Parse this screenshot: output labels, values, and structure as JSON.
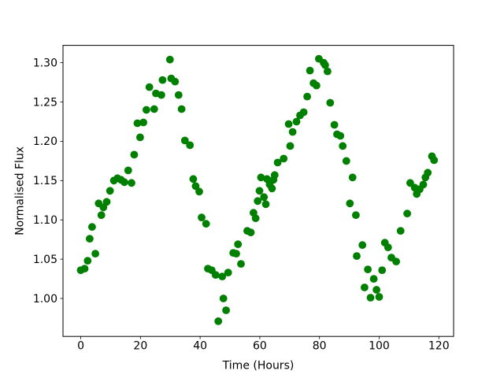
{
  "figure": {
    "background_color": "#ffffff",
    "axes_line_color": "#000000",
    "tick_label_color": "#000000"
  },
  "chart_data": {
    "type": "scatter",
    "title": "",
    "xlabel": "Time (Hours)",
    "ylabel": "Normalised Flux",
    "grid": false,
    "legend": null,
    "marker": {
      "shape": "circle",
      "color": "#008000",
      "radius_px": 4.9
    },
    "xlim": [
      -5.95,
      124.95
    ],
    "ylim": [
      0.9517,
      1.3221
    ],
    "x_ticks": [
      0,
      20,
      40,
      60,
      80,
      100,
      120
    ],
    "x_tick_labels": [
      "0",
      "20",
      "40",
      "60",
      "80",
      "100",
      "120"
    ],
    "y_ticks": [
      1.0,
      1.05,
      1.1,
      1.15,
      1.2,
      1.25,
      1.3
    ],
    "y_tick_labels": [
      "1.00",
      "1.05",
      "1.10",
      "1.15",
      "1.20",
      "1.25",
      "1.30"
    ],
    "points": [
      [
        0.0,
        1.036
      ],
      [
        1.3,
        1.038
      ],
      [
        2.3,
        1.048
      ],
      [
        3.0,
        1.076
      ],
      [
        3.8,
        1.091
      ],
      [
        4.9,
        1.057
      ],
      [
        6.0,
        1.121
      ],
      [
        6.9,
        1.106
      ],
      [
        7.6,
        1.116
      ],
      [
        8.7,
        1.123
      ],
      [
        9.8,
        1.137
      ],
      [
        11.1,
        1.15
      ],
      [
        12.3,
        1.153
      ],
      [
        13.5,
        1.151
      ],
      [
        14.6,
        1.148
      ],
      [
        15.9,
        1.163
      ],
      [
        17.0,
        1.147
      ],
      [
        17.9,
        1.183
      ],
      [
        19.0,
        1.223
      ],
      [
        19.9,
        1.205
      ],
      [
        21.0,
        1.224
      ],
      [
        22.0,
        1.24
      ],
      [
        23.0,
        1.269
      ],
      [
        24.6,
        1.241
      ],
      [
        25.2,
        1.261
      ],
      [
        27.0,
        1.259
      ],
      [
        27.4,
        1.278
      ],
      [
        29.9,
        1.304
      ],
      [
        30.3,
        1.28
      ],
      [
        31.6,
        1.276
      ],
      [
        32.8,
        1.259
      ],
      [
        33.8,
        1.241
      ],
      [
        34.9,
        1.201
      ],
      [
        36.6,
        1.195
      ],
      [
        37.7,
        1.152
      ],
      [
        38.5,
        1.143
      ],
      [
        39.7,
        1.136
      ],
      [
        40.5,
        1.103
      ],
      [
        42.0,
        1.095
      ],
      [
        42.6,
        1.038
      ],
      [
        43.9,
        1.036
      ],
      [
        45.2,
        1.03
      ],
      [
        46.1,
        0.971
      ],
      [
        47.4,
        1.028
      ],
      [
        47.8,
        1.0
      ],
      [
        48.7,
        0.985
      ],
      [
        49.4,
        1.033
      ],
      [
        51.1,
        1.058
      ],
      [
        52.1,
        1.057
      ],
      [
        52.7,
        1.069
      ],
      [
        53.7,
        1.044
      ],
      [
        55.8,
        1.086
      ],
      [
        57.0,
        1.084
      ],
      [
        57.9,
        1.109
      ],
      [
        58.6,
        1.102
      ],
      [
        59.3,
        1.124
      ],
      [
        59.9,
        1.137
      ],
      [
        60.4,
        1.154
      ],
      [
        61.4,
        1.129
      ],
      [
        62.0,
        1.12
      ],
      [
        62.4,
        1.152
      ],
      [
        63.3,
        1.145
      ],
      [
        64.1,
        1.14
      ],
      [
        64.6,
        1.151
      ],
      [
        65.0,
        1.157
      ],
      [
        66.0,
        1.173
      ],
      [
        68.0,
        1.178
      ],
      [
        69.7,
        1.222
      ],
      [
        70.2,
        1.194
      ],
      [
        71.0,
        1.212
      ],
      [
        72.3,
        1.225
      ],
      [
        73.5,
        1.233
      ],
      [
        74.7,
        1.237
      ],
      [
        75.9,
        1.257
      ],
      [
        76.8,
        1.29
      ],
      [
        78.0,
        1.274
      ],
      [
        79.0,
        1.271
      ],
      [
        79.8,
        1.305
      ],
      [
        81.4,
        1.3
      ],
      [
        81.9,
        1.297
      ],
      [
        82.7,
        1.289
      ],
      [
        83.6,
        1.249
      ],
      [
        85.0,
        1.221
      ],
      [
        85.9,
        1.209
      ],
      [
        87.0,
        1.207
      ],
      [
        87.8,
        1.194
      ],
      [
        89.0,
        1.175
      ],
      [
        90.2,
        1.121
      ],
      [
        91.1,
        1.154
      ],
      [
        92.2,
        1.106
      ],
      [
        92.5,
        1.054
      ],
      [
        94.4,
        1.068
      ],
      [
        95.1,
        1.014
      ],
      [
        96.2,
        1.037
      ],
      [
        97.1,
        1.001
      ],
      [
        98.2,
        1.025
      ],
      [
        99.1,
        1.011
      ],
      [
        100.0,
        1.002
      ],
      [
        101.0,
        1.036
      ],
      [
        101.9,
        1.071
      ],
      [
        103.0,
        1.065
      ],
      [
        104.1,
        1.052
      ],
      [
        105.7,
        1.047
      ],
      [
        107.2,
        1.086
      ],
      [
        109.4,
        1.108
      ],
      [
        110.4,
        1.147
      ],
      [
        111.9,
        1.141
      ],
      [
        112.6,
        1.133
      ],
      [
        113.6,
        1.139
      ],
      [
        114.8,
        1.145
      ],
      [
        115.5,
        1.154
      ],
      [
        116.3,
        1.16
      ],
      [
        117.7,
        1.181
      ],
      [
        118.4,
        1.176
      ]
    ]
  }
}
